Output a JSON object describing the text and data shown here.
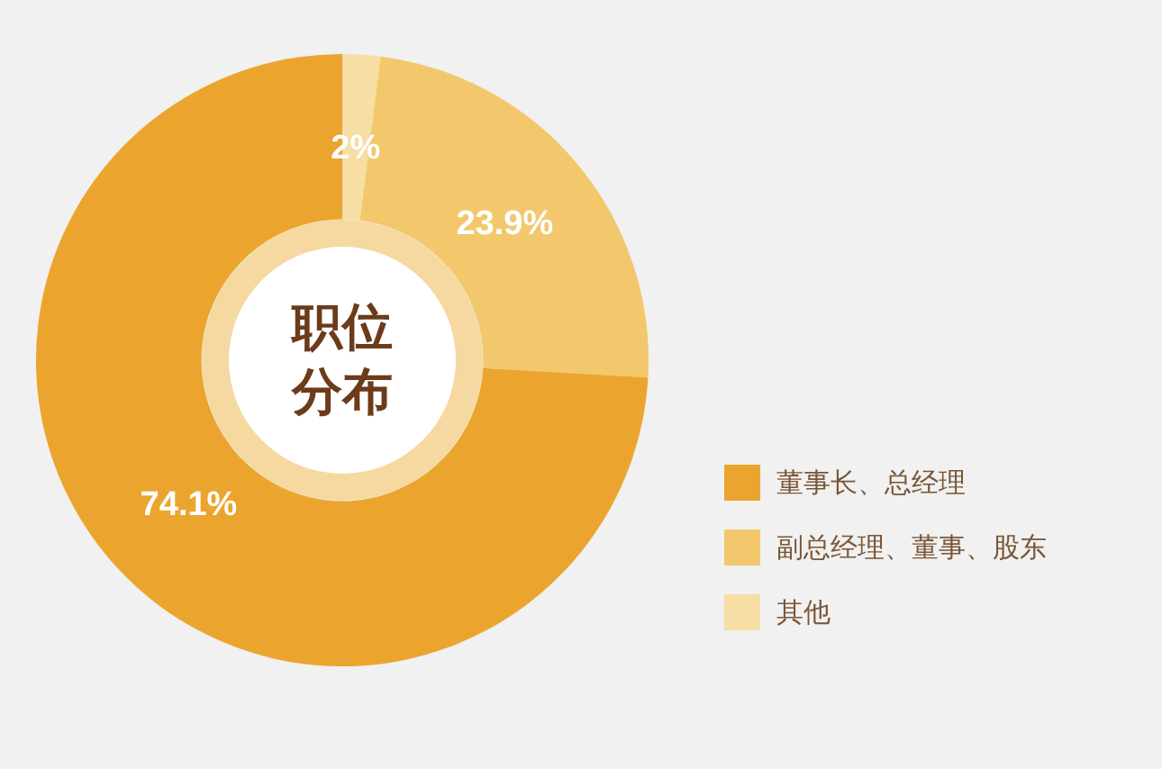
{
  "chart_data": {
    "type": "donut",
    "title": "职位分布",
    "categories": [
      "董事长、总经理",
      "副总经理、董事、股东",
      "其他"
    ],
    "values": [
      74.1,
      23.9,
      2
    ],
    "value_labels": [
      "74.1%",
      "23.9%",
      "2%"
    ],
    "colors": [
      "#eba52e",
      "#f3c86c",
      "#f6dea4"
    ],
    "legend": "right"
  }
}
